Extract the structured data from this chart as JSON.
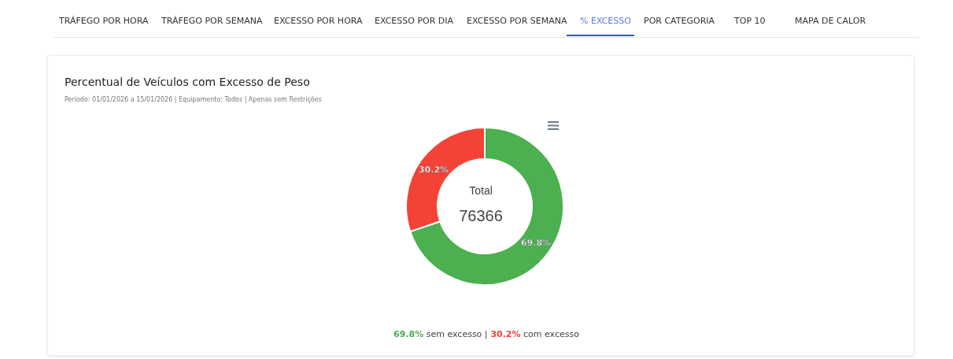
{
  "chart_data": {
    "type": "donut",
    "title": "Percentual de Veículos com Excesso de Peso",
    "subtitle": "Período: 01/01/2026 a 15/01/2026 | Equipamento: Todos | Apenas sem Restrições",
    "categories": [
      null,
      null
    ],
    "values": [
      69.8,
      30.2
    ],
    "colors": [
      "#4caf50",
      "#f44336"
    ],
    "value_labels": [
      "69.8%",
      "30.2%"
    ],
    "annotations": [
      "TRÁFEGO POR HORA",
      "TRÁFEGO POR SEMANA",
      "EXCESSO POR HORA",
      "EXCESSO POR DIA",
      "EXCESSO POR SEMANA",
      "% EXCESSO",
      "POR CATEGORIA",
      "TOP 10",
      "MAPA DE CALOR",
      "Total",
      "76366",
      "69.8%",
      "sem excesso",
      "|",
      "30.2%",
      "com excesso"
    ]
  }
}
